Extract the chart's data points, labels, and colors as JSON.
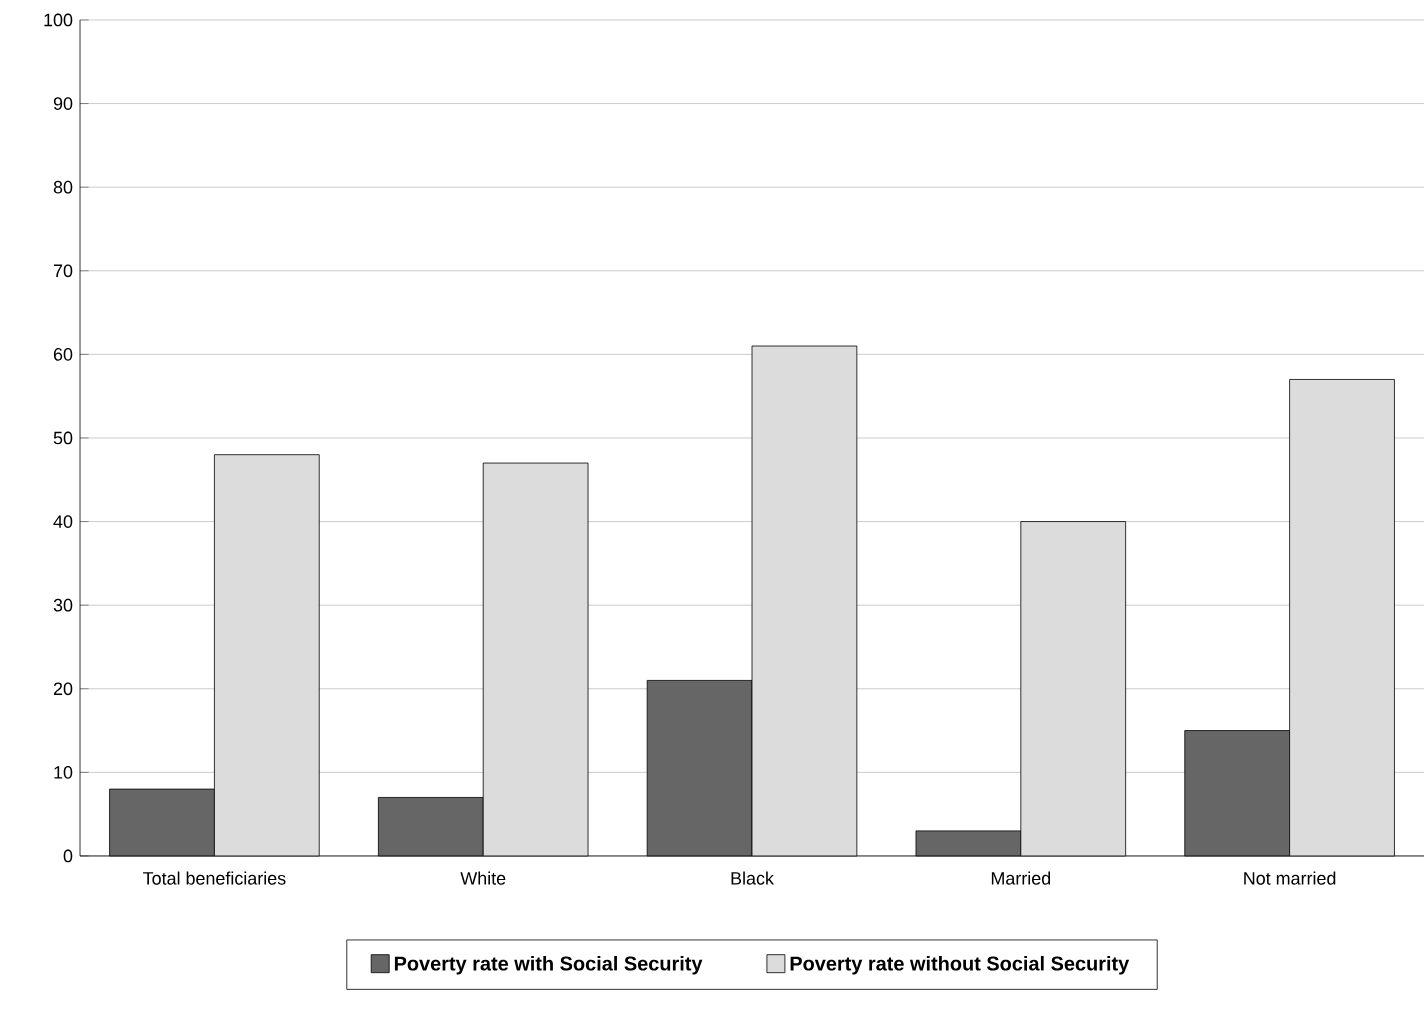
{
  "chart_data": {
    "type": "bar",
    "categories": [
      "Total beneficiaries",
      "White",
      "Black",
      "Married",
      "Not married"
    ],
    "series": [
      {
        "name": "Poverty rate with Social Security",
        "color": "#666666",
        "values": [
          8,
          7,
          21,
          3,
          15
        ]
      },
      {
        "name": "Poverty rate without Social Security",
        "color": "#dcdcdc",
        "values": [
          48,
          47,
          61,
          40,
          57
        ]
      }
    ],
    "ylim": [
      0,
      100
    ],
    "yticks": [
      0,
      10,
      20,
      30,
      40,
      50,
      60,
      70,
      80,
      90,
      100
    ],
    "grid": "y",
    "legend": "bottom"
  }
}
